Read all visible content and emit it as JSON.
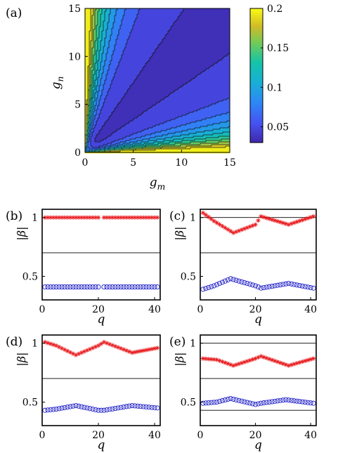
{
  "chart_data": [
    {
      "panel": "(a)",
      "type": "heatmap",
      "subtype": "filled-contour",
      "xlabel": "g_m",
      "ylabel": "g_n",
      "xlim": [
        0,
        15
      ],
      "ylim": [
        0,
        15
      ],
      "xticks": [
        "0",
        "5",
        "10",
        "15"
      ],
      "yticks": [
        "0",
        "5",
        "10",
        "15"
      ],
      "colorbar": {
        "ticks": [
          "0.05",
          "0.1",
          "0.15",
          "0.2"
        ],
        "range": [
          0.03,
          0.2
        ]
      },
      "contour_levels": [
        0.04,
        0.055,
        0.07,
        0.085,
        0.1,
        0.115,
        0.13,
        0.145,
        0.16,
        0.175,
        0.19
      ]
    },
    {
      "panel": "(b)",
      "type": "scatter",
      "xlabel": "q",
      "ylabel": "|β|",
      "xlim": [
        0,
        42
      ],
      "ylim": [
        0.3,
        1.07
      ],
      "xticks": [
        "0",
        "20",
        "40"
      ],
      "yticks": [
        "0.5",
        "1"
      ],
      "hlines": [
        0.7
      ],
      "series": [
        {
          "marker": "star",
          "color": "#e8191c",
          "x": [
            1,
            21,
            23,
            41
          ],
          "values": [
            1.0,
            1.0,
            1.0,
            1.0
          ]
        },
        {
          "marker": "circle",
          "color": "#1f1fc8",
          "x": [
            1,
            21,
            23,
            41
          ],
          "values": [
            0.41,
            0.41,
            0.41,
            0.41
          ]
        }
      ]
    },
    {
      "panel": "(c)",
      "type": "scatter",
      "xlabel": "q",
      "ylabel": "|β|",
      "xlim": [
        0,
        42
      ],
      "ylim": [
        0.3,
        1.07
      ],
      "xticks": [
        "0",
        "20",
        "40"
      ],
      "yticks": [
        "0.5",
        "1"
      ],
      "hlines": [
        1.0,
        0.7
      ],
      "series": [
        {
          "marker": "star",
          "color": "#e8191c",
          "x": [
            1,
            5,
            12,
            20,
            22,
            32,
            41
          ],
          "values": [
            1.04,
            0.97,
            0.87,
            0.94,
            1.01,
            0.94,
            1.01
          ]
        },
        {
          "marker": "circle",
          "color": "#1f1fc8",
          "x": [
            1,
            5,
            11,
            20,
            22,
            32,
            41
          ],
          "values": [
            0.39,
            0.42,
            0.48,
            0.42,
            0.4,
            0.44,
            0.4
          ]
        }
      ]
    },
    {
      "panel": "(d)",
      "type": "scatter",
      "xlabel": "q",
      "ylabel": "|β|",
      "xlim": [
        0,
        42
      ],
      "ylim": [
        0.3,
        1.07
      ],
      "xticks": [
        "0",
        "20",
        "40"
      ],
      "yticks": [
        "0.5",
        "1"
      ],
      "hlines": [
        0.7
      ],
      "series": [
        {
          "marker": "star",
          "color": "#e8191c",
          "x": [
            1,
            5,
            12,
            20,
            22,
            32,
            41
          ],
          "values": [
            1.01,
            0.98,
            0.9,
            0.98,
            1.01,
            0.92,
            0.96
          ]
        },
        {
          "marker": "circle",
          "color": "#1f1fc8",
          "x": [
            1,
            5,
            12,
            20,
            22,
            32,
            41
          ],
          "values": [
            0.43,
            0.44,
            0.47,
            0.43,
            0.43,
            0.47,
            0.45
          ]
        }
      ]
    },
    {
      "panel": "(e)",
      "type": "scatter",
      "xlabel": "q",
      "ylabel": "|β|",
      "xlim": [
        0,
        42
      ],
      "ylim": [
        0.3,
        1.07
      ],
      "xticks": [
        "0",
        "20",
        "40"
      ],
      "yticks": [
        "0.5",
        "1"
      ],
      "hlines": [
        1.0,
        0.7,
        0.43
      ],
      "series": [
        {
          "marker": "star",
          "color": "#e8191c",
          "x": [
            1,
            6,
            12,
            20,
            22,
            32,
            41
          ],
          "values": [
            0.87,
            0.86,
            0.81,
            0.87,
            0.89,
            0.81,
            0.87
          ]
        },
        {
          "marker": "circle",
          "color": "#1f1fc8",
          "x": [
            1,
            6,
            11,
            20,
            22,
            31,
            41
          ],
          "values": [
            0.49,
            0.5,
            0.53,
            0.48,
            0.49,
            0.52,
            0.49
          ]
        }
      ]
    }
  ]
}
